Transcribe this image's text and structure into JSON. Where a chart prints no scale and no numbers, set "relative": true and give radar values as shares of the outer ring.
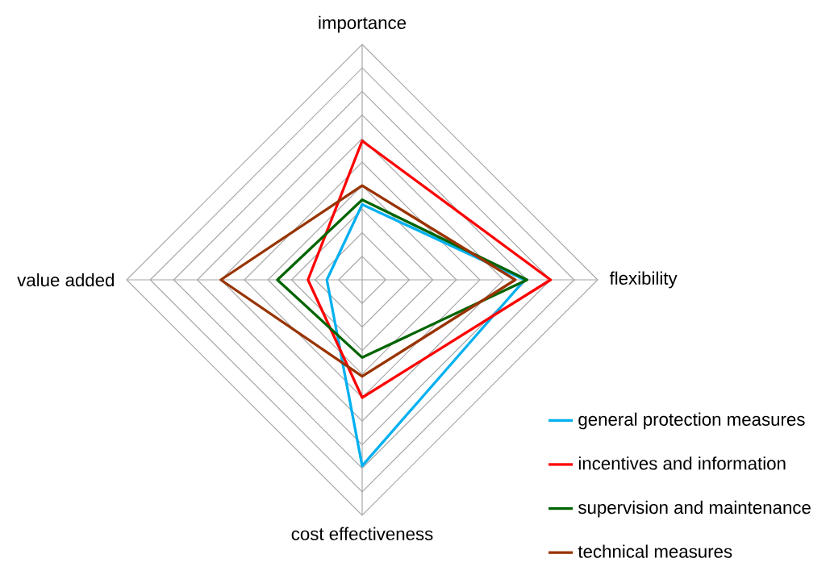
{
  "chart_data": {
    "type": "radar",
    "relative": true,
    "grid": true,
    "legend": "bottom right",
    "categories": [
      "importance",
      "flexibility",
      "cost effectiveness",
      "value added"
    ],
    "series": [
      {
        "name": "general protection measures",
        "color": "#00b0f0",
        "values": [
          0.32,
          0.69,
          0.79,
          0.15
        ]
      },
      {
        "name": "incentives and information",
        "color": "#ff0000",
        "values": [
          0.59,
          0.8,
          0.5,
          0.23
        ]
      },
      {
        "name": "supervision and maintenance",
        "color": "#006400",
        "values": [
          0.34,
          0.7,
          0.33,
          0.36
        ]
      },
      {
        "name": "technical measures",
        "color": "#993300",
        "values": [
          0.4,
          0.65,
          0.41,
          0.6
        ]
      }
    ]
  }
}
